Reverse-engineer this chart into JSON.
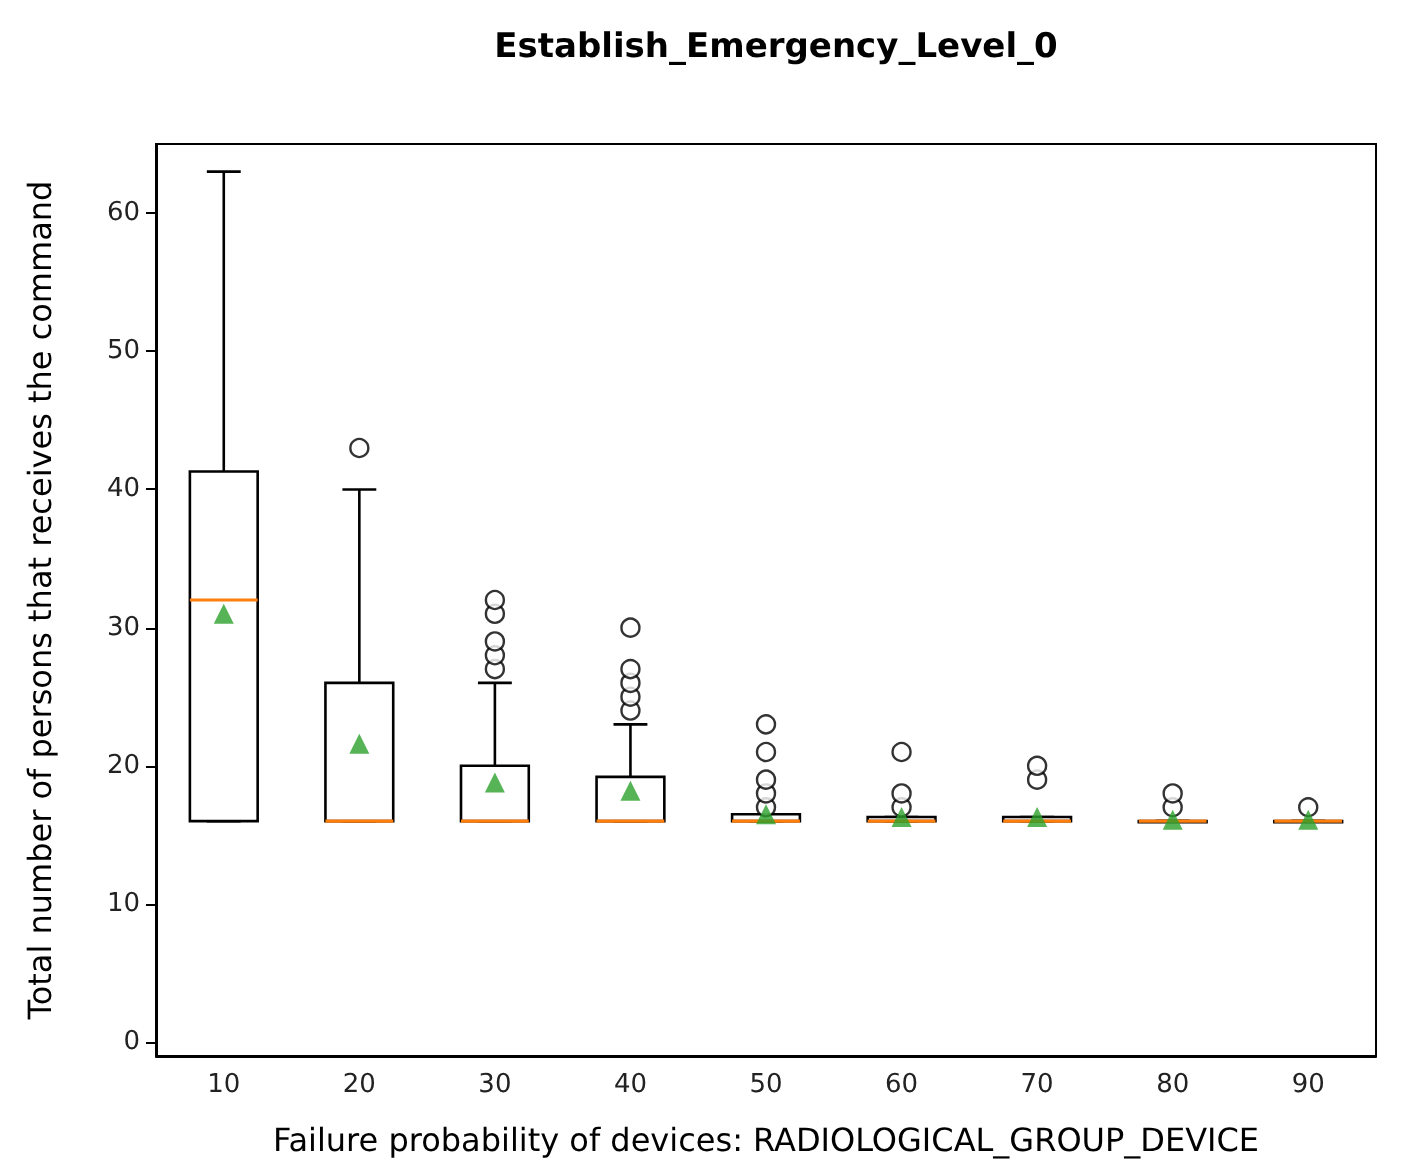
{
  "chart_data": {
    "type": "box",
    "title": "Establish_Emergency_Level_0",
    "xlabel": "Failure probability of devices: RADIOLOGICAL_GROUP_DEVICE",
    "ylabel": "Total number of persons that receives the command",
    "categories": [
      "10",
      "20",
      "30",
      "40",
      "50",
      "60",
      "70",
      "80",
      "90"
    ],
    "boxes": [
      {
        "low": 16,
        "q1": 16,
        "median": 32,
        "q3": 41.3,
        "high": 63,
        "mean": 31
      },
      {
        "low": 16,
        "q1": 16,
        "median": 16,
        "q3": 26,
        "high": 40,
        "mean": 21.6,
        "outliers": [
          43
        ]
      },
      {
        "low": 16,
        "q1": 16,
        "median": 16,
        "q3": 20,
        "high": 26,
        "mean": 18.8,
        "outliers": [
          27,
          28,
          29,
          31,
          32
        ]
      },
      {
        "low": 16,
        "q1": 16,
        "median": 16,
        "q3": 19.2,
        "high": 23,
        "mean": 18.2,
        "outliers": [
          24,
          25,
          26,
          27,
          30
        ]
      },
      {
        "low": 16,
        "q1": 16,
        "median": 16,
        "q3": 16.5,
        "high": 16.5,
        "mean": 16.5,
        "outliers": [
          17,
          18,
          19,
          21,
          23
        ]
      },
      {
        "low": 16,
        "q1": 16,
        "median": 16,
        "q3": 16.3,
        "high": 16.3,
        "mean": 16.3,
        "outliers": [
          17,
          18,
          21
        ]
      },
      {
        "low": 16,
        "q1": 16,
        "median": 16,
        "q3": 16.3,
        "high": 16.3,
        "mean": 16.3,
        "outliers": [
          19,
          20
        ]
      },
      {
        "low": 16,
        "q1": 16,
        "median": 16,
        "q3": 16,
        "high": 16,
        "mean": 16.1,
        "outliers": [
          17,
          18
        ]
      },
      {
        "low": 16,
        "q1": 16,
        "median": 16,
        "q3": 16,
        "high": 16,
        "mean": 16.1,
        "outliers": [
          17
        ]
      }
    ],
    "ylim": [
      -1,
      65
    ],
    "yticks": [
      0,
      10,
      20,
      30,
      40,
      50,
      60
    ]
  }
}
